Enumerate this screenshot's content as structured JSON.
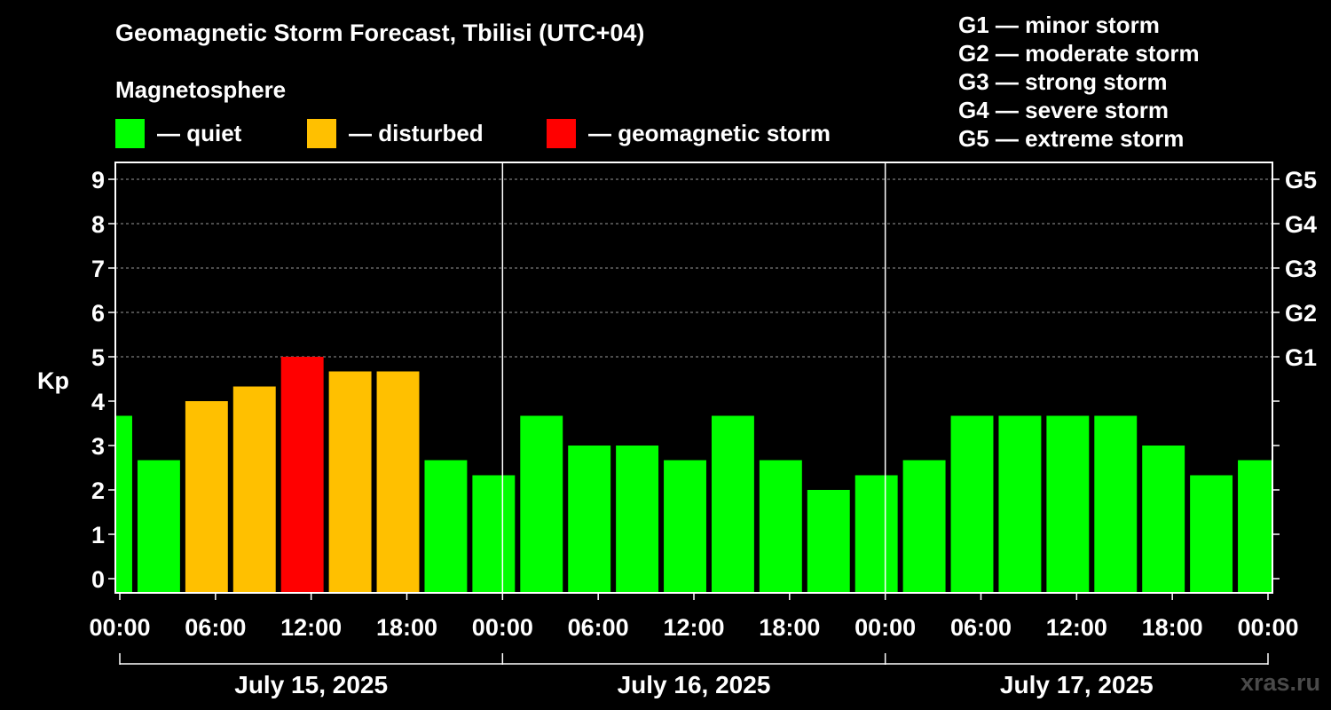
{
  "header": {
    "title": "Geomagnetic Storm Forecast, Tbilisi (UTC+04)",
    "subtitle": "Magnetosphere"
  },
  "legend": [
    {
      "label": "— quiet",
      "color": "#00ff00"
    },
    {
      "label": "— disturbed",
      "color": "#ffc000"
    },
    {
      "label": "— geomagnetic storm",
      "color": "#ff0000"
    }
  ],
  "g_scale": [
    "G1 — minor storm",
    "G2 — moderate storm",
    "G3 — strong storm",
    "G4 — severe storm",
    "G5 — extreme storm"
  ],
  "watermark": "xras.ru",
  "chart_data": {
    "type": "bar",
    "title": "Geomagnetic Storm Forecast, Tbilisi (UTC+04)",
    "ylabel": "Kp",
    "ylim": [
      0,
      9
    ],
    "yticks": [
      0,
      1,
      2,
      3,
      4,
      5,
      6,
      7,
      8,
      9
    ],
    "right_axis_labels": [
      {
        "kp": 5,
        "label": "G1"
      },
      {
        "kp": 6,
        "label": "G2"
      },
      {
        "kp": 7,
        "label": "G3"
      },
      {
        "kp": 8,
        "label": "G4"
      },
      {
        "kp": 9,
        "label": "G5"
      }
    ],
    "x_range_hours": [
      0,
      72
    ],
    "bar_interval_hours": 3,
    "first_bar_start_hours": -2,
    "x_tick_labels": [
      {
        "h": 0,
        "label": "00:00"
      },
      {
        "h": 6,
        "label": "06:00"
      },
      {
        "h": 12,
        "label": "12:00"
      },
      {
        "h": 18,
        "label": "18:00"
      },
      {
        "h": 24,
        "label": "00:00"
      },
      {
        "h": 30,
        "label": "06:00"
      },
      {
        "h": 36,
        "label": "12:00"
      },
      {
        "h": 42,
        "label": "18:00"
      },
      {
        "h": 48,
        "label": "00:00"
      },
      {
        "h": 54,
        "label": "06:00"
      },
      {
        "h": 60,
        "label": "12:00"
      },
      {
        "h": 66,
        "label": "18:00"
      },
      {
        "h": 72,
        "label": "00:00"
      }
    ],
    "days": [
      "July 15, 2025",
      "July 16, 2025",
      "July 17, 2025"
    ],
    "values": [
      3.67,
      2.67,
      4.0,
      4.33,
      5.0,
      4.67,
      4.67,
      2.67,
      2.33,
      3.67,
      3.0,
      3.0,
      2.67,
      3.67,
      2.67,
      2.0,
      2.33,
      2.67,
      3.67,
      3.67,
      3.67,
      3.67,
      3.0,
      2.33,
      2.67
    ],
    "categories": [
      "quiet",
      "quiet",
      "disturbed",
      "disturbed",
      "geomagnetic storm",
      "disturbed",
      "disturbed",
      "quiet",
      "quiet",
      "quiet",
      "quiet",
      "quiet",
      "quiet",
      "quiet",
      "quiet",
      "quiet",
      "quiet",
      "quiet",
      "quiet",
      "quiet",
      "quiet",
      "quiet",
      "quiet",
      "quiet",
      "quiet"
    ],
    "colors": {
      "quiet": "#00ff00",
      "disturbed": "#ffc000",
      "geomagnetic storm": "#ff0000"
    },
    "grid": true
  }
}
